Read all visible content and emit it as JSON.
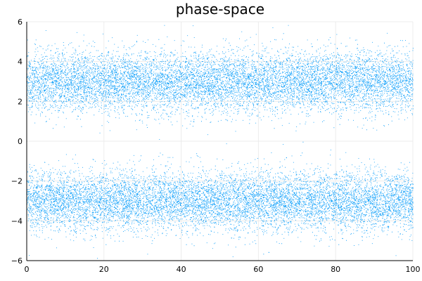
{
  "chart_data": {
    "type": "scatter",
    "title": "phase-space",
    "xlabel": "",
    "ylabel": "",
    "xlim": [
      0,
      100
    ],
    "ylim": [
      -6,
      6
    ],
    "xticks": [
      0,
      20,
      40,
      60,
      80,
      100
    ],
    "yticks": [
      -6,
      -4,
      -2,
      0,
      2,
      4,
      6
    ],
    "x_tick_labels": [
      "0",
      "20",
      "40",
      "60",
      "80",
      "100"
    ],
    "y_tick_labels": [
      "−6",
      "−4",
      "−2",
      "0",
      "2",
      "4",
      "6"
    ],
    "grid": true,
    "legend": "none",
    "marker_color": "#009AFA",
    "series": [
      {
        "bands": [
          {
            "center": 3.0,
            "spread": 0.75
          },
          {
            "center": -3.0,
            "spread": 0.75
          }
        ],
        "x_range": [
          0,
          100
        ],
        "point_count": 20000
      }
    ]
  }
}
